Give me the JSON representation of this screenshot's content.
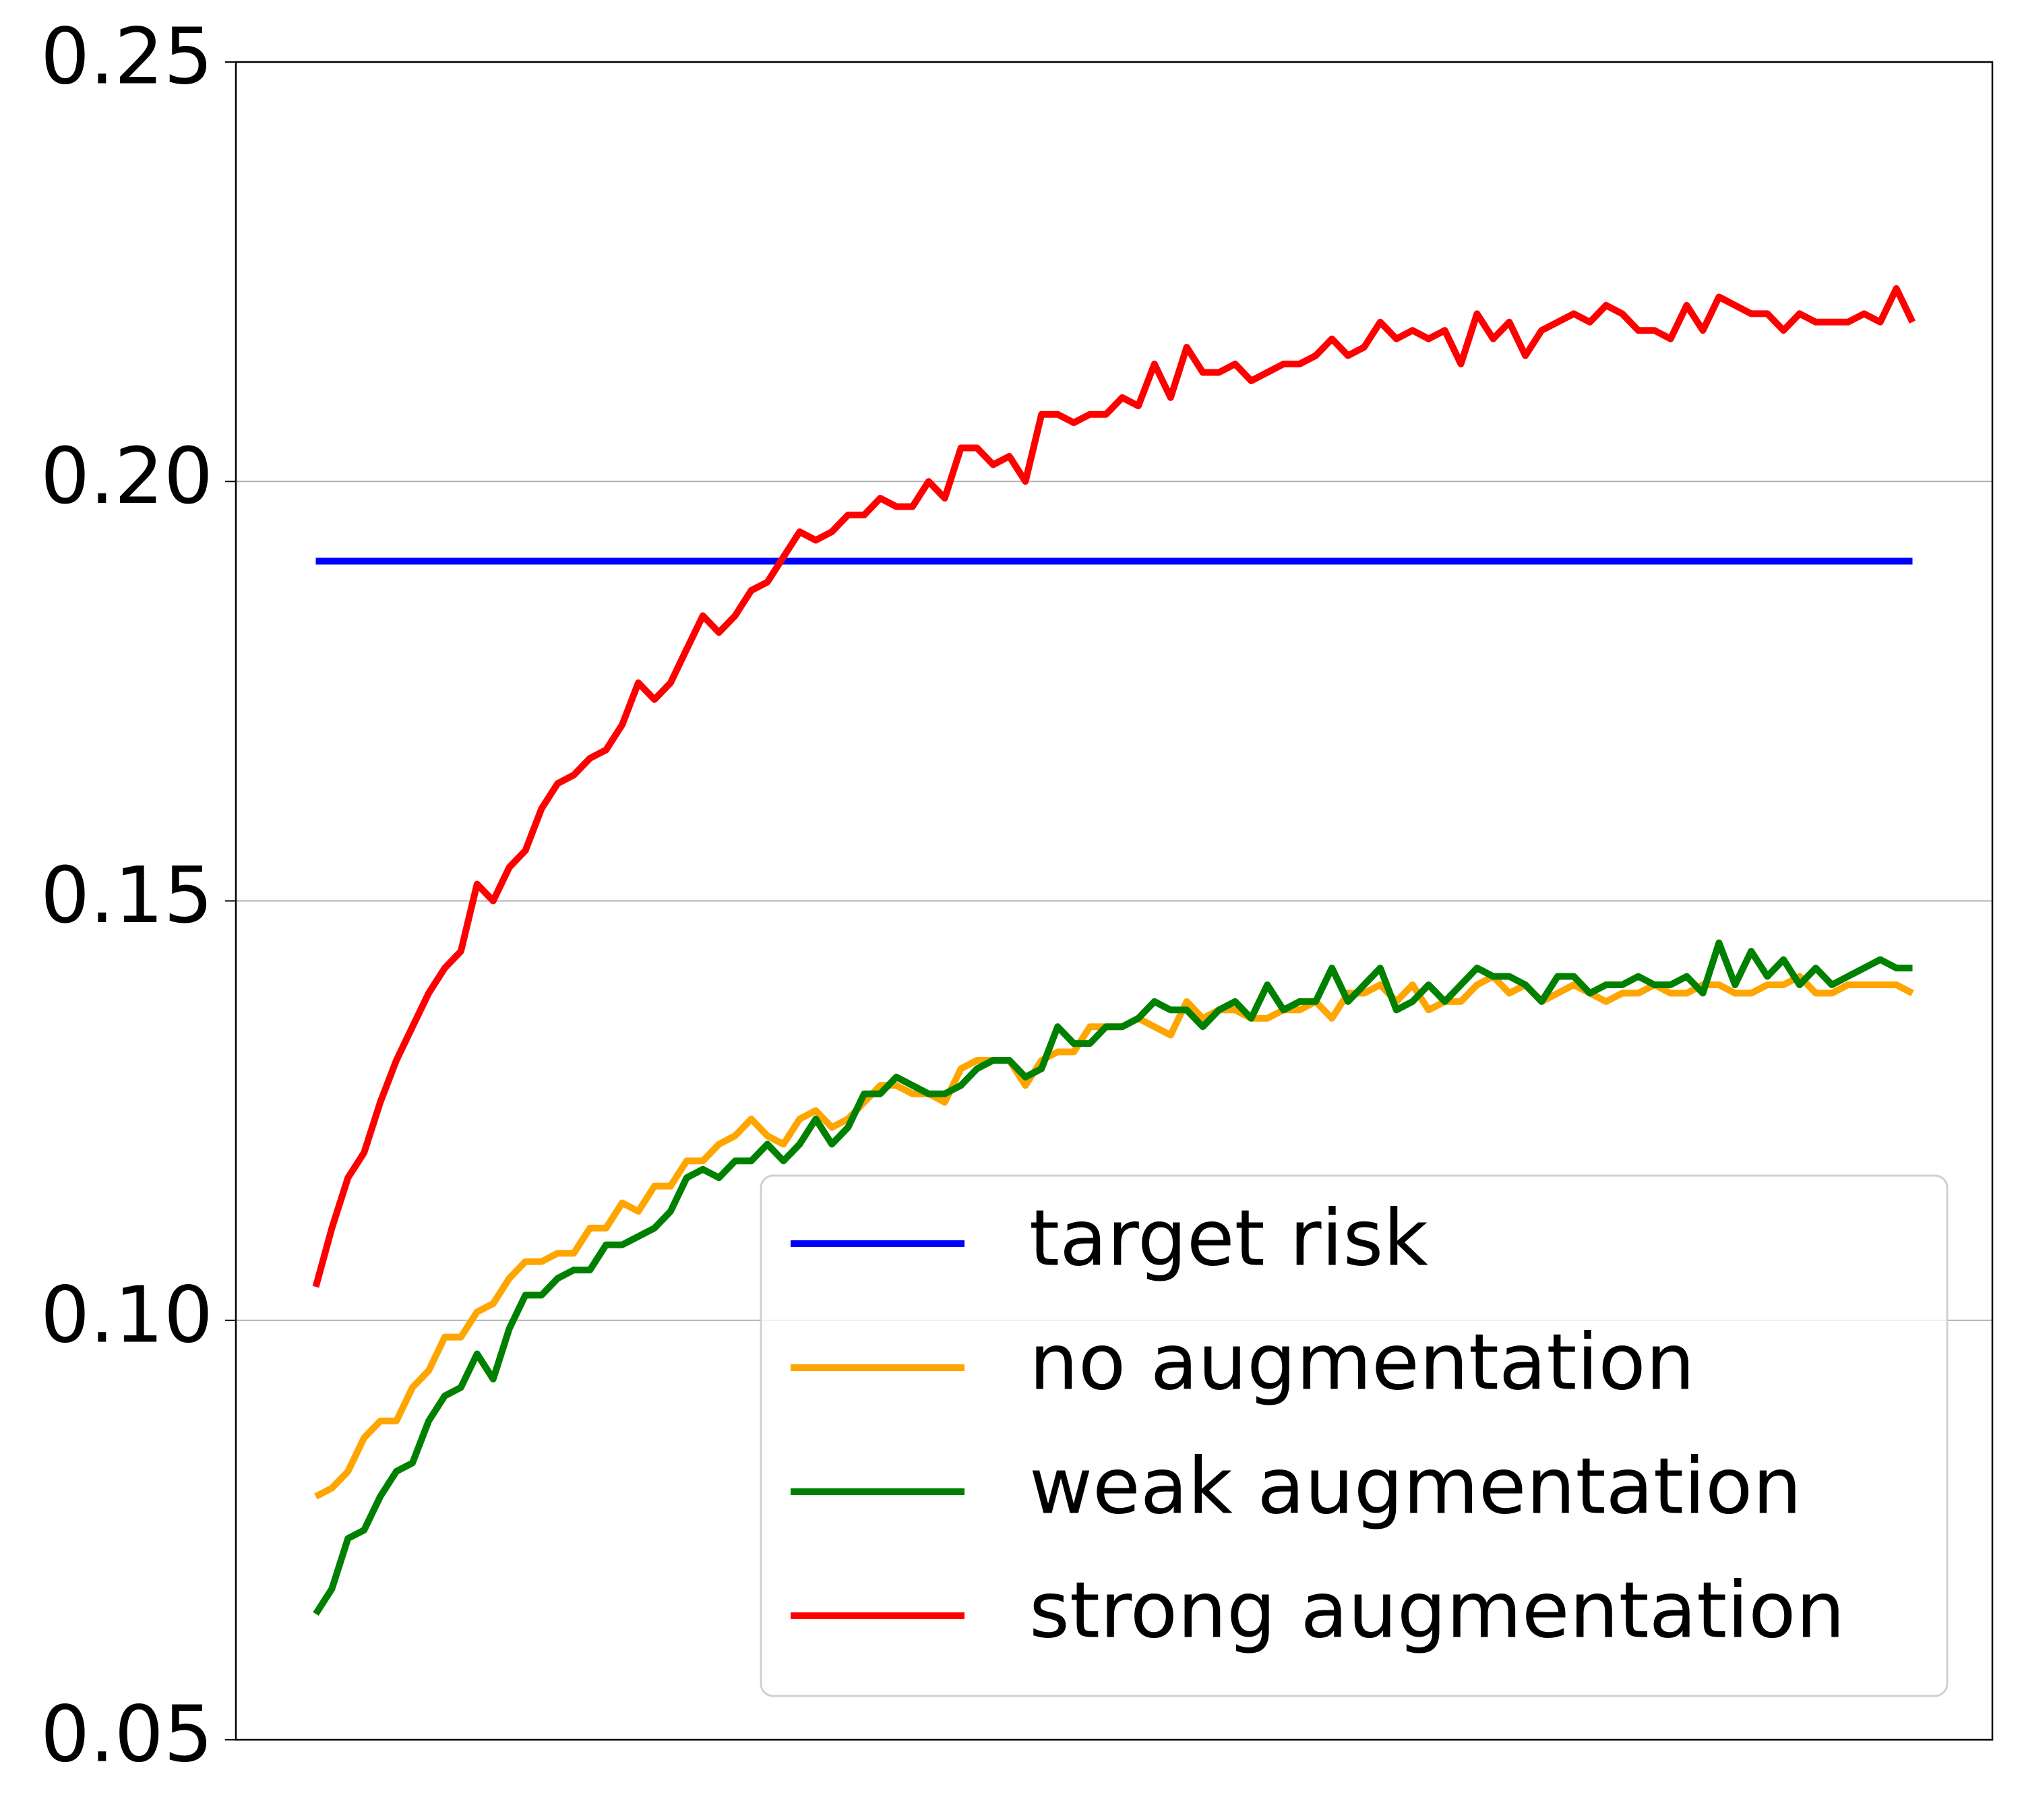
{
  "chart_data": {
    "type": "line",
    "x": [
      0,
      1,
      2,
      3,
      4,
      5,
      6,
      7,
      8,
      9,
      10,
      11,
      12,
      13,
      14,
      15,
      16,
      17,
      18,
      19,
      20,
      21,
      22,
      23,
      24,
      25,
      26,
      27,
      28,
      29,
      30,
      31,
      32,
      33,
      34,
      35,
      36,
      37,
      38,
      39,
      40,
      41,
      42,
      43,
      44,
      45,
      46,
      47,
      48,
      49,
      50,
      51,
      52,
      53,
      54,
      55,
      56,
      57,
      58,
      59,
      60,
      61,
      62,
      63,
      64,
      65,
      66,
      67,
      68,
      69,
      70,
      71,
      72,
      73,
      74,
      75,
      76,
      77,
      78,
      79,
      80,
      81,
      82,
      83,
      84,
      85,
      86,
      87,
      88,
      89,
      90,
      91,
      92,
      93,
      94,
      95,
      96,
      97,
      98,
      99
    ],
    "xlim": [
      -4.95,
      103.95
    ],
    "ylim": [
      0.05,
      0.25
    ],
    "yticks": [
      0.05,
      {
        "value": 0.1,
        "label": "0.10"
      },
      0.15,
      {
        "value": 0.2,
        "label": "0.20"
      },
      0.25
    ],
    "grid": true,
    "legend": "lower right",
    "series": [
      {
        "name": "target risk",
        "color": "#0000ff",
        "x": [
          0,
          99
        ],
        "values": [
          0.1905,
          0.1905
        ]
      },
      {
        "name": "no augmentation",
        "color": "#ffa500",
        "values": [
          0.079,
          0.08,
          0.082,
          0.086,
          0.088,
          0.088,
          0.092,
          0.094,
          0.098,
          0.098,
          0.101,
          0.102,
          0.105,
          0.107,
          0.107,
          0.108,
          0.108,
          0.111,
          0.111,
          0.114,
          0.113,
          0.116,
          0.116,
          0.119,
          0.119,
          0.121,
          0.122,
          0.124,
          0.122,
          0.121,
          0.124,
          0.125,
          0.123,
          0.124,
          0.126,
          0.128,
          0.128,
          0.127,
          0.127,
          0.126,
          0.13,
          0.131,
          0.131,
          0.131,
          0.128,
          0.131,
          0.132,
          0.132,
          0.135,
          0.135,
          0.135,
          0.136,
          0.135,
          0.134,
          0.138,
          0.136,
          0.137,
          0.137,
          0.136,
          0.136,
          0.137,
          0.137,
          0.138,
          0.136,
          0.139,
          0.139,
          0.14,
          0.138,
          0.14,
          0.137,
          0.138,
          0.138,
          0.14,
          0.141,
          0.139,
          0.14,
          0.138,
          0.139,
          0.14,
          0.139,
          0.138,
          0.139,
          0.139,
          0.14,
          0.139,
          0.139,
          0.14,
          0.14,
          0.139,
          0.139,
          0.14,
          0.14,
          0.141,
          0.139,
          0.139,
          0.14,
          0.14,
          0.14,
          0.14,
          0.139
        ]
      },
      {
        "name": "weak augmentation",
        "color": "#008000",
        "values": [
          0.065,
          0.068,
          0.074,
          0.075,
          0.079,
          0.082,
          0.083,
          0.088,
          0.091,
          0.092,
          0.096,
          0.093,
          0.099,
          0.103,
          0.103,
          0.105,
          0.106,
          0.106,
          0.109,
          0.109,
          0.11,
          0.111,
          0.113,
          0.117,
          0.118,
          0.117,
          0.119,
          0.119,
          0.121,
          0.119,
          0.121,
          0.124,
          0.121,
          0.123,
          0.127,
          0.127,
          0.129,
          0.128,
          0.127,
          0.127,
          0.128,
          0.13,
          0.131,
          0.131,
          0.129,
          0.13,
          0.135,
          0.133,
          0.133,
          0.135,
          0.135,
          0.136,
          0.138,
          0.137,
          0.137,
          0.135,
          0.137,
          0.138,
          0.136,
          0.14,
          0.137,
          0.138,
          0.138,
          0.142,
          0.138,
          0.14,
          0.142,
          0.137,
          0.138,
          0.14,
          0.138,
          0.14,
          0.142,
          0.141,
          0.141,
          0.14,
          0.138,
          0.141,
          0.141,
          0.139,
          0.14,
          0.14,
          0.141,
          0.14,
          0.14,
          0.141,
          0.139,
          0.145,
          0.14,
          0.144,
          0.141,
          0.143,
          0.14,
          0.142,
          0.14,
          0.141,
          0.142,
          0.143,
          0.142,
          0.142
        ]
      },
      {
        "name": "strong augmentation",
        "color": "#ff0000",
        "values": [
          0.104,
          0.111,
          0.117,
          0.12,
          0.126,
          0.131,
          0.135,
          0.139,
          0.142,
          0.144,
          0.152,
          0.15,
          0.154,
          0.156,
          0.161,
          0.164,
          0.165,
          0.167,
          0.168,
          0.171,
          0.176,
          0.174,
          0.176,
          0.18,
          0.184,
          0.182,
          0.184,
          0.187,
          0.188,
          0.191,
          0.194,
          0.193,
          0.194,
          0.196,
          0.196,
          0.198,
          0.197,
          0.197,
          0.2,
          0.198,
          0.204,
          0.204,
          0.202,
          0.203,
          0.2,
          0.208,
          0.208,
          0.207,
          0.208,
          0.208,
          0.21,
          0.209,
          0.214,
          0.21,
          0.216,
          0.213,
          0.213,
          0.214,
          0.212,
          0.213,
          0.214,
          0.214,
          0.215,
          0.217,
          0.215,
          0.216,
          0.219,
          0.217,
          0.218,
          0.217,
          0.218,
          0.214,
          0.22,
          0.217,
          0.219,
          0.215,
          0.218,
          0.219,
          0.22,
          0.219,
          0.221,
          0.22,
          0.218,
          0.218,
          0.217,
          0.221,
          0.218,
          0.222,
          0.221,
          0.22,
          0.22,
          0.218,
          0.22,
          0.219,
          0.219,
          0.219,
          0.22,
          0.219,
          0.223,
          0.219
        ]
      }
    ]
  }
}
